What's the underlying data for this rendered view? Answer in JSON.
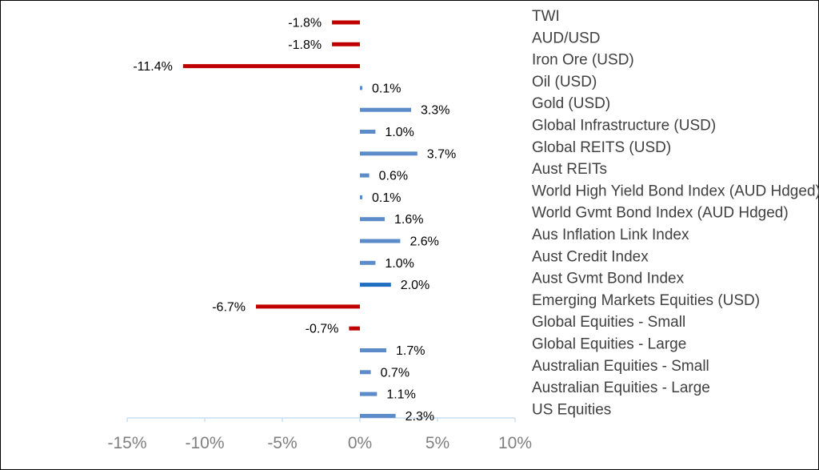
{
  "chart_data": {
    "type": "bar",
    "orientation": "horizontal",
    "title": "",
    "xlabel": "",
    "ylabel": "",
    "xlim": [
      -15,
      10
    ],
    "xticks": [
      -15,
      -10,
      -5,
      0,
      5,
      10
    ],
    "tick_labels": [
      "-15%",
      "-10%",
      "-5%",
      "0%",
      "5%",
      "10%"
    ],
    "grid": false,
    "legend": "none",
    "colors": {
      "positive": "#5b8bc9",
      "negative": "#c00000",
      "highlight": "#1f6fc0"
    },
    "categories": [
      "TWI",
      "AUD/USD",
      "Iron Ore (USD)",
      "Oil (USD)",
      "Gold (USD)",
      "Global Infrastructure (USD)",
      "Global REITS (USD)",
      "Aust REITs",
      "World High Yield Bond Index (AUD Hdged)",
      "World Gvmt Bond Index (AUD Hdged)",
      "Aus Inflation Link Index",
      "Aust Credit Index",
      "Aust Gvmt Bond Index",
      "Emerging Markets Equities (USD)",
      "Global Equities - Small",
      "Global Equities - Large",
      "Australian Equities - Small",
      "Australian Equities - Large",
      "US Equities"
    ],
    "values": [
      -1.8,
      -1.8,
      -11.4,
      0.1,
      3.3,
      1.0,
      3.7,
      0.6,
      0.1,
      1.6,
      2.6,
      1.0,
      2.0,
      -6.7,
      -0.7,
      1.7,
      0.7,
      1.1,
      2.3
    ],
    "data_labels": [
      "-1.8%",
      "-1.8%",
      "-11.4%",
      "0.1%",
      "3.3%",
      "1.0%",
      "3.7%",
      "0.6%",
      "0.1%",
      "1.6%",
      "2.6%",
      "1.0%",
      "2.0%",
      "-6.7%",
      "-0.7%",
      "1.7%",
      "0.7%",
      "1.1%",
      "2.3%"
    ],
    "highlight_index": 12
  }
}
